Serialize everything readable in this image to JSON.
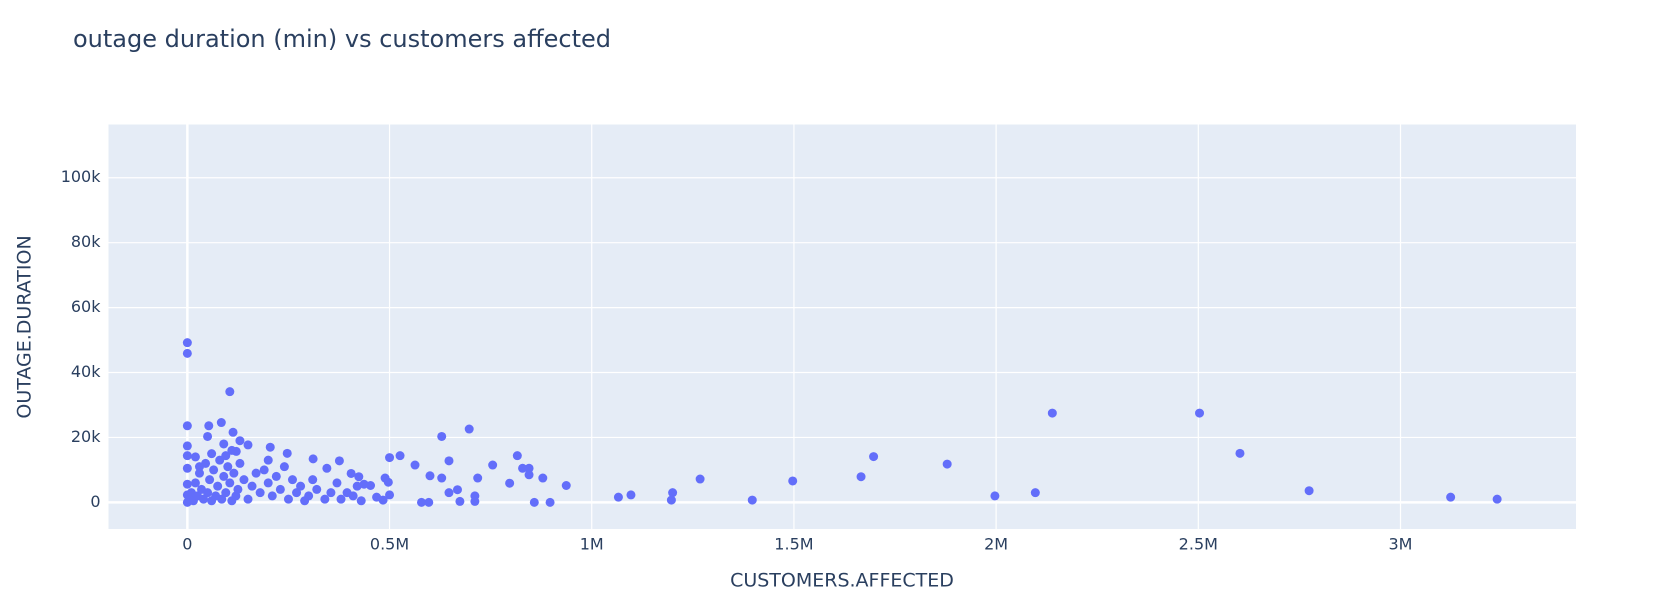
{
  "chart_data": {
    "type": "scatter",
    "title": "outage duration (min) vs customers affected",
    "x_label": "CUSTOMERS.AFFECTED",
    "y_label": "OUTAGE.DURATION",
    "color": "#636efa",
    "grid": true,
    "xlim": [
      -195000,
      3434000
    ],
    "ylim": [
      -8200,
      116400
    ],
    "xticks": [
      0,
      {
        "value": 500000,
        "label": "0.5M"
      },
      {
        "value": 1000000,
        "label": "1M"
      },
      {
        "value": 1500000,
        "label": "1.5M"
      },
      {
        "value": 2000000,
        "label": "2M"
      },
      {
        "value": 2500000,
        "label": "2.5M"
      },
      {
        "value": 3000000,
        "label": "3M"
      }
    ],
    "yticks": [
      0,
      {
        "value": 20000,
        "label": "20k"
      },
      {
        "value": 40000,
        "label": "40k"
      },
      {
        "value": 60000,
        "label": "60k"
      },
      {
        "value": 80000,
        "label": "80k"
      },
      {
        "value": 100000,
        "label": "100k"
      }
    ],
    "x": [
      2139000,
      2503000,
      2603000,
      2774000,
      3124000,
      3239000,
      1997000,
      2097000,
      1879000,
      1697000,
      1666000,
      1497000,
      1397000,
      1268000,
      1200000,
      1197000,
      1097000,
      1066000,
      937000,
      897000,
      879000,
      858000,
      845000,
      845000,
      829000,
      816000,
      797000,
      755000,
      718000,
      711000,
      711000,
      697000,
      674000,
      668000,
      647000,
      647000,
      629000,
      629000,
      600000,
      597000,
      579000,
      563000,
      526000,
      500000,
      500000,
      497000,
      489000,
      484000,
      468000,
      453000,
      0,
      0,
      0,
      0,
      0,
      0,
      0,
      0,
      0,
      105000,
      84000,
      53000,
      50000,
      113000,
      150000,
      205000,
      121000,
      247000,
      95000,
      311000,
      376000,
      345000,
      405000,
      424000,
      437000,
      5000,
      10000,
      15000,
      20000,
      25000,
      30000,
      35000,
      40000,
      45000,
      50000,
      55000,
      60000,
      65000,
      70000,
      75000,
      80000,
      85000,
      90000,
      95000,
      100000,
      105000,
      110000,
      115000,
      120000,
      125000,
      130000,
      140000,
      150000,
      160000,
      170000,
      180000,
      190000,
      200000,
      210000,
      220000,
      230000,
      240000,
      250000,
      260000,
      270000,
      280000,
      290000,
      300000,
      310000,
      320000,
      340000,
      355000,
      370000,
      380000,
      395000,
      410000,
      420000,
      430000,
      60000,
      90000,
      130000,
      200000,
      30000,
      20000,
      110000
    ],
    "values": [
      27500,
      27500,
      15100,
      3600,
      1600,
      1000,
      2000,
      3000,
      11800,
      14100,
      7900,
      6600,
      700,
      7200,
      3000,
      700,
      2300,
      1600,
      5200,
      0,
      7500,
      0,
      8500,
      10500,
      10500,
      14400,
      5900,
      11500,
      7500,
      2000,
      300,
      22600,
      300,
      3900,
      3000,
      12800,
      20300,
      7500,
      8200,
      0,
      0,
      11500,
      14400,
      13800,
      2300,
      6200,
      7500,
      700,
      1600,
      5200,
      49200,
      45900,
      23600,
      17400,
      14400,
      10500,
      5600,
      2300,
      0,
      34100,
      24600,
      23600,
      20300,
      21600,
      17700,
      17000,
      15700,
      15100,
      14400,
      13400,
      12800,
      10500,
      8900,
      7900,
      5600,
      1000,
      3000,
      500,
      6000,
      2000,
      9000,
      4000,
      1000,
      12000,
      3000,
      7000,
      500,
      10000,
      2000,
      5000,
      13000,
      1000,
      8000,
      3000,
      11000,
      6000,
      500,
      9000,
      2000,
      4000,
      12000,
      7000,
      1000,
      5000,
      9000,
      3000,
      10000,
      6000,
      2000,
      8000,
      4000,
      11000,
      1000,
      7000,
      3000,
      5000,
      500,
      2000,
      7000,
      4000,
      1000,
      3000,
      6000,
      1000,
      3000,
      2000,
      5000,
      500,
      15000,
      18000,
      19000,
      13000,
      11000,
      14000,
      16000
    ]
  }
}
